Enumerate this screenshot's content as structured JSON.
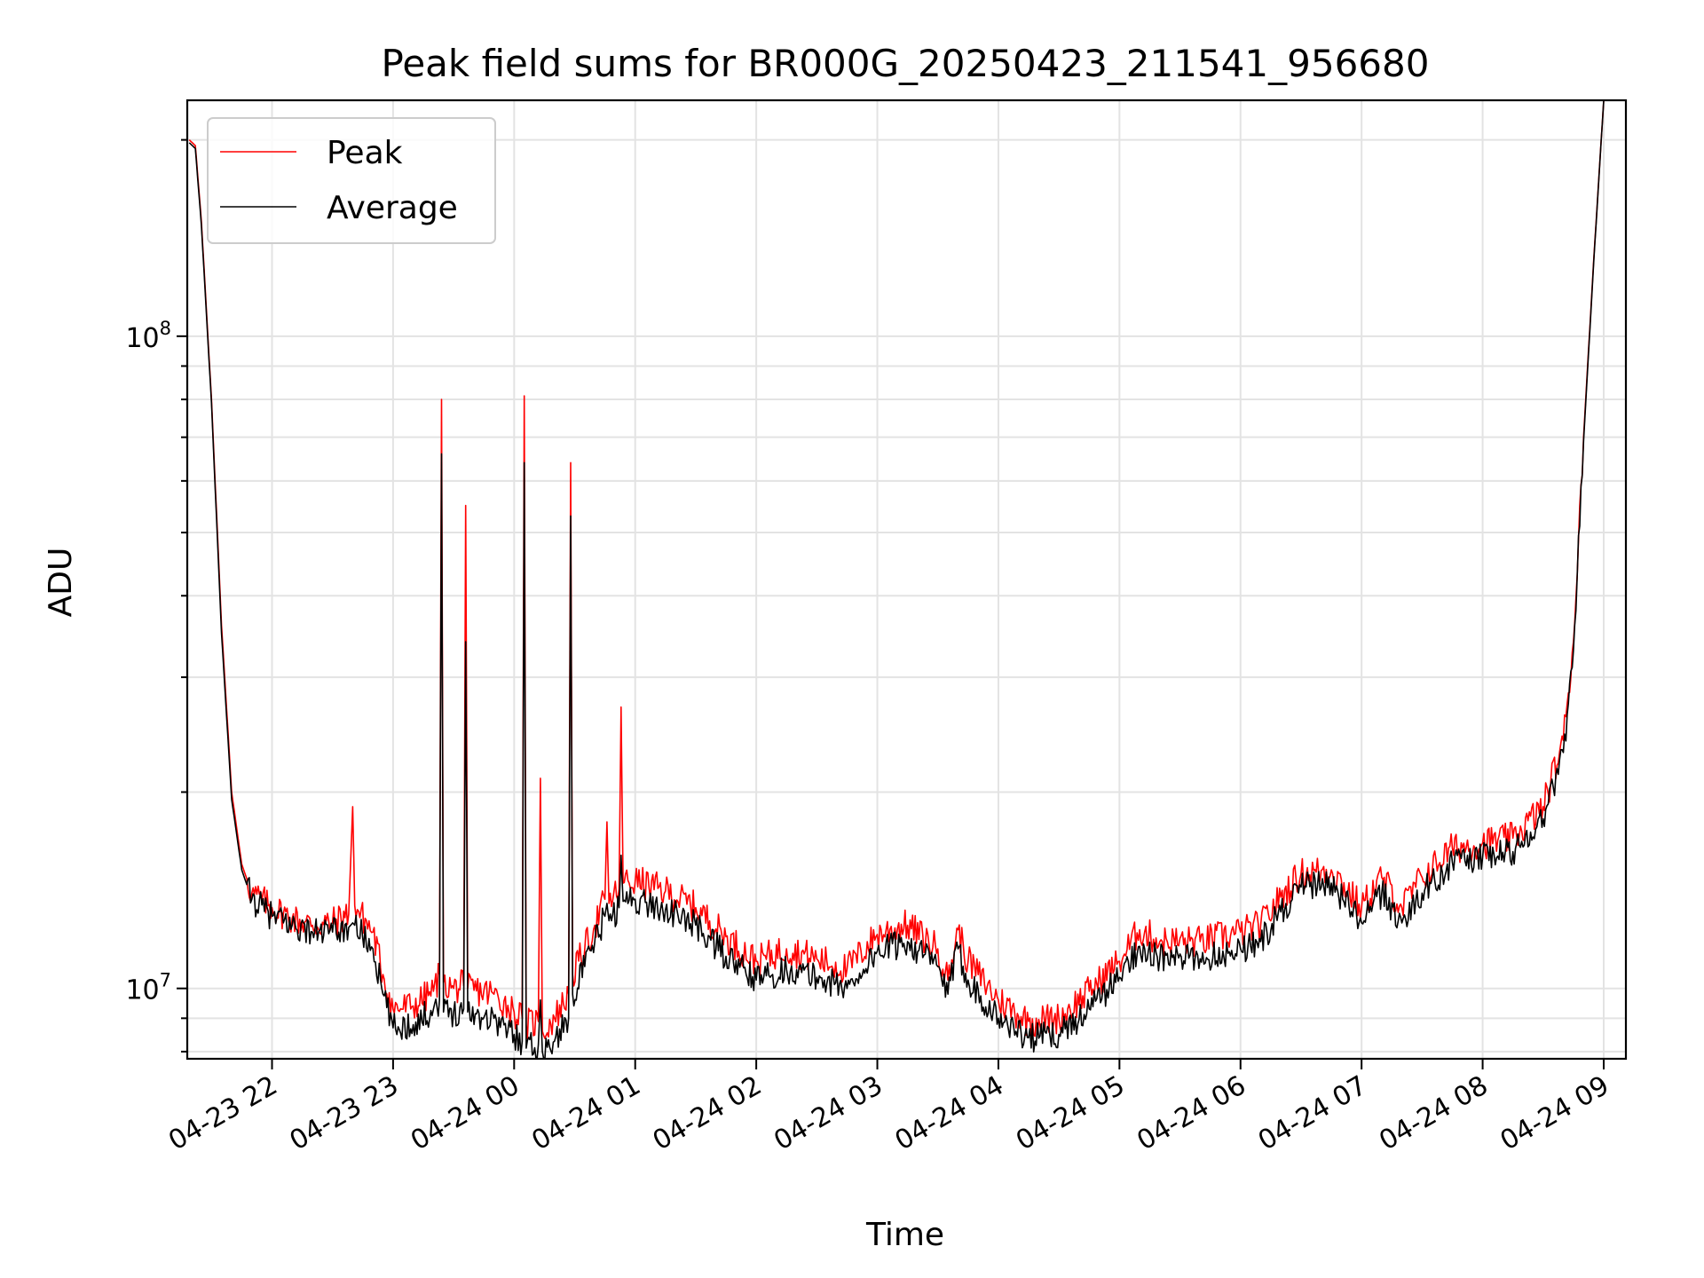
{
  "chart_data": {
    "type": "line",
    "title": "Peak field sums for BR000G_20250423_211541_956680",
    "xlabel": "Time",
    "ylabel": "ADU",
    "y_scale": "log",
    "ylim": [
      7800000,
      230000000
    ],
    "xlim": [
      "2025-04-23 21:18",
      "2025-04-24 09:11"
    ],
    "grid": true,
    "legend_position": "upper-left",
    "x_tick_labels": [
      "04-23 22",
      "04-23 23",
      "04-24 00",
      "04-24 01",
      "04-24 02",
      "04-24 03",
      "04-24 04",
      "04-24 05",
      "04-24 06",
      "04-24 07",
      "04-24 08",
      "04-24 09"
    ],
    "x_tick_times": [
      "2025-04-23 22:00",
      "2025-04-23 23:00",
      "2025-04-24 00:00",
      "2025-04-24 01:00",
      "2025-04-24 02:00",
      "2025-04-24 03:00",
      "2025-04-24 04:00",
      "2025-04-24 05:00",
      "2025-04-24 06:00",
      "2025-04-24 07:00",
      "2025-04-24 08:00",
      "2025-04-24 09:00"
    ],
    "y_major_ticks": [
      {
        "value": 10000000,
        "base": "10",
        "exp": "7"
      },
      {
        "value": 100000000,
        "base": "10",
        "exp": "8"
      }
    ],
    "series": [
      {
        "name": "Peak",
        "color": "#ff0000",
        "points": [
          [
            "2025-04-23 21:19",
            200000000
          ],
          [
            "2025-04-23 21:22",
            196000000
          ],
          [
            "2025-04-23 21:25",
            150000000
          ],
          [
            "2025-04-23 21:30",
            80000000
          ],
          [
            "2025-04-23 21:35",
            36000000
          ],
          [
            "2025-04-23 21:40",
            20000000
          ],
          [
            "2025-04-23 21:45",
            15500000
          ],
          [
            "2025-04-23 21:50",
            14000000
          ],
          [
            "2025-04-23 22:00",
            13300000
          ],
          [
            "2025-04-23 22:10",
            12800000
          ],
          [
            "2025-04-23 22:20",
            12500000
          ],
          [
            "2025-04-23 22:30",
            12600000
          ],
          [
            "2025-04-23 22:38",
            13000000
          ],
          [
            "2025-04-23 22:40",
            19000000
          ],
          [
            "2025-04-23 22:41",
            13400000
          ],
          [
            "2025-04-23 22:50",
            12200000
          ],
          [
            "2025-04-23 22:55",
            10500000
          ],
          [
            "2025-04-23 23:00",
            9300000
          ],
          [
            "2025-04-23 23:10",
            9400000
          ],
          [
            "2025-04-23 23:20",
            9900000
          ],
          [
            "2025-04-23 23:23",
            10500000
          ],
          [
            "2025-04-23 23:24",
            80000000
          ],
          [
            "2025-04-23 23:25",
            10200000
          ],
          [
            "2025-04-23 23:30",
            10000000
          ],
          [
            "2025-04-23 23:35",
            10100000
          ],
          [
            "2025-04-23 23:36",
            55000000
          ],
          [
            "2025-04-23 23:37",
            10000000
          ],
          [
            "2025-04-23 23:50",
            9800000
          ],
          [
            "2025-04-24 00:00",
            9200000
          ],
          [
            "2025-04-24 00:04",
            9000000
          ],
          [
            "2025-04-24 00:05",
            81000000
          ],
          [
            "2025-04-24 00:06",
            8800000
          ],
          [
            "2025-04-24 00:12",
            8900000
          ],
          [
            "2025-04-24 00:13",
            21000000
          ],
          [
            "2025-04-24 00:14",
            8600000
          ],
          [
            "2025-04-24 00:20",
            9000000
          ],
          [
            "2025-04-24 00:27",
            9800000
          ],
          [
            "2025-04-24 00:28",
            64000000
          ],
          [
            "2025-04-24 00:29",
            10500000
          ],
          [
            "2025-04-24 00:35",
            11500000
          ],
          [
            "2025-04-24 00:40",
            12500000
          ],
          [
            "2025-04-24 00:45",
            13700000
          ],
          [
            "2025-04-24 00:46",
            18000000
          ],
          [
            "2025-04-24 00:47",
            13500000
          ],
          [
            "2025-04-24 00:52",
            14200000
          ],
          [
            "2025-04-24 00:53",
            27000000
          ],
          [
            "2025-04-24 00:54",
            14500000
          ],
          [
            "2025-04-24 01:00",
            14600000
          ],
          [
            "2025-04-24 01:15",
            14100000
          ],
          [
            "2025-04-24 01:30",
            13300000
          ],
          [
            "2025-04-24 01:45",
            12000000
          ],
          [
            "2025-04-24 02:00",
            11000000
          ],
          [
            "2025-04-24 02:15",
            11500000
          ],
          [
            "2025-04-24 02:30",
            11100000
          ],
          [
            "2025-04-24 02:45",
            10700000
          ],
          [
            "2025-04-24 03:00",
            12100000
          ],
          [
            "2025-04-24 03:15",
            12500000
          ],
          [
            "2025-04-24 03:30",
            11500000
          ],
          [
            "2025-04-24 03:35",
            10300000
          ],
          [
            "2025-04-24 03:40",
            12300000
          ],
          [
            "2025-04-24 03:45",
            11000000
          ],
          [
            "2025-04-24 04:00",
            9600000
          ],
          [
            "2025-04-24 04:15",
            8900000
          ],
          [
            "2025-04-24 04:30",
            9000000
          ],
          [
            "2025-04-24 04:45",
            9900000
          ],
          [
            "2025-04-24 05:00",
            11000000
          ],
          [
            "2025-04-24 05:10",
            12300000
          ],
          [
            "2025-04-24 05:20",
            11800000
          ],
          [
            "2025-04-24 05:40",
            11800000
          ],
          [
            "2025-04-24 06:00",
            12200000
          ],
          [
            "2025-04-24 06:10",
            12500000
          ],
          [
            "2025-04-24 06:20",
            13800000
          ],
          [
            "2025-04-24 06:30",
            15000000
          ],
          [
            "2025-04-24 06:45",
            15200000
          ],
          [
            "2025-04-24 07:00",
            13300000
          ],
          [
            "2025-04-24 07:10",
            14800000
          ],
          [
            "2025-04-24 07:20",
            13300000
          ],
          [
            "2025-04-24 07:30",
            14800000
          ],
          [
            "2025-04-24 07:45",
            16400000
          ],
          [
            "2025-04-24 08:00",
            16700000
          ],
          [
            "2025-04-24 08:15",
            17000000
          ],
          [
            "2025-04-24 08:30",
            19000000
          ],
          [
            "2025-04-24 08:40",
            24000000
          ],
          [
            "2025-04-24 08:45",
            34000000
          ],
          [
            "2025-04-24 08:50",
            70000000
          ],
          [
            "2025-04-24 08:55",
            130000000
          ],
          [
            "2025-04-24 09:00",
            230000000
          ]
        ]
      },
      {
        "name": "Average",
        "color": "#000000",
        "points": [
          [
            "2025-04-23 21:19",
            198000000
          ],
          [
            "2025-04-23 21:22",
            194000000
          ],
          [
            "2025-04-23 21:25",
            148000000
          ],
          [
            "2025-04-23 21:30",
            79000000
          ],
          [
            "2025-04-23 21:35",
            35000000
          ],
          [
            "2025-04-23 21:40",
            19500000
          ],
          [
            "2025-04-23 21:45",
            15200000
          ],
          [
            "2025-04-23 21:50",
            13700000
          ],
          [
            "2025-04-23 22:00",
            12900000
          ],
          [
            "2025-04-23 22:10",
            12500000
          ],
          [
            "2025-04-23 22:20",
            12200000
          ],
          [
            "2025-04-23 22:30",
            12200000
          ],
          [
            "2025-04-23 22:38",
            12400000
          ],
          [
            "2025-04-23 22:40",
            12600000
          ],
          [
            "2025-04-23 22:41",
            12500000
          ],
          [
            "2025-04-23 22:50",
            11500000
          ],
          [
            "2025-04-23 22:55",
            9800000
          ],
          [
            "2025-04-23 23:00",
            8700000
          ],
          [
            "2025-04-23 23:10",
            8800000
          ],
          [
            "2025-04-23 23:20",
            9300000
          ],
          [
            "2025-04-23 23:23",
            9600000
          ],
          [
            "2025-04-23 23:24",
            66000000
          ],
          [
            "2025-04-23 23:25",
            9200000
          ],
          [
            "2025-04-23 23:30",
            9200000
          ],
          [
            "2025-04-23 23:35",
            9300000
          ],
          [
            "2025-04-23 23:36",
            34000000
          ],
          [
            "2025-04-23 23:37",
            9200000
          ],
          [
            "2025-04-23 23:50",
            9000000
          ],
          [
            "2025-04-24 00:00",
            8500000
          ],
          [
            "2025-04-24 00:04",
            8300000
          ],
          [
            "2025-04-24 00:05",
            64000000
          ],
          [
            "2025-04-24 00:06",
            8100000
          ],
          [
            "2025-04-24 00:12",
            8200000
          ],
          [
            "2025-04-24 00:13",
            9600000
          ],
          [
            "2025-04-24 00:14",
            8000000
          ],
          [
            "2025-04-24 00:20",
            8300000
          ],
          [
            "2025-04-24 00:27",
            9000000
          ],
          [
            "2025-04-24 00:28",
            53000000
          ],
          [
            "2025-04-24 00:29",
            9800000
          ],
          [
            "2025-04-24 00:35",
            10800000
          ],
          [
            "2025-04-24 00:40",
            11800000
          ],
          [
            "2025-04-24 00:45",
            12900000
          ],
          [
            "2025-04-24 00:46",
            13500000
          ],
          [
            "2025-04-24 00:47",
            12700000
          ],
          [
            "2025-04-24 00:52",
            13300000
          ],
          [
            "2025-04-24 00:53",
            16000000
          ],
          [
            "2025-04-24 00:54",
            13600000
          ],
          [
            "2025-04-24 01:00",
            13700000
          ],
          [
            "2025-04-24 01:15",
            13200000
          ],
          [
            "2025-04-24 01:30",
            12500000
          ],
          [
            "2025-04-24 01:45",
            11200000
          ],
          [
            "2025-04-24 02:00",
            10300000
          ],
          [
            "2025-04-24 02:15",
            10700000
          ],
          [
            "2025-04-24 02:30",
            10400000
          ],
          [
            "2025-04-24 02:45",
            10000000
          ],
          [
            "2025-04-24 03:00",
            11400000
          ],
          [
            "2025-04-24 03:15",
            11800000
          ],
          [
            "2025-04-24 03:30",
            10800000
          ],
          [
            "2025-04-24 03:35",
            9800000
          ],
          [
            "2025-04-24 03:40",
            11500000
          ],
          [
            "2025-04-24 03:45",
            10300000
          ],
          [
            "2025-04-24 04:00",
            9000000
          ],
          [
            "2025-04-24 04:15",
            8400000
          ],
          [
            "2025-04-24 04:30",
            8500000
          ],
          [
            "2025-04-24 04:45",
            9300000
          ],
          [
            "2025-04-24 05:00",
            10400000
          ],
          [
            "2025-04-24 05:10",
            11600000
          ],
          [
            "2025-04-24 05:20",
            11100000
          ],
          [
            "2025-04-24 05:40",
            11100000
          ],
          [
            "2025-04-24 06:00",
            11500000
          ],
          [
            "2025-04-24 06:10",
            11800000
          ],
          [
            "2025-04-24 06:20",
            13100000
          ],
          [
            "2025-04-24 06:30",
            14300000
          ],
          [
            "2025-04-24 06:45",
            14500000
          ],
          [
            "2025-04-24 07:00",
            12600000
          ],
          [
            "2025-04-24 07:10",
            14000000
          ],
          [
            "2025-04-24 07:20",
            12600000
          ],
          [
            "2025-04-24 07:30",
            14000000
          ],
          [
            "2025-04-24 07:45",
            15600000
          ],
          [
            "2025-04-24 08:00",
            15900000
          ],
          [
            "2025-04-24 08:15",
            16200000
          ],
          [
            "2025-04-24 08:30",
            18200000
          ],
          [
            "2025-04-24 08:40",
            23000000
          ],
          [
            "2025-04-24 08:45",
            33000000
          ],
          [
            "2025-04-24 08:50",
            69000000
          ],
          [
            "2025-04-24 08:55",
            129000000
          ],
          [
            "2025-04-24 09:00",
            230000000
          ]
        ]
      }
    ]
  }
}
